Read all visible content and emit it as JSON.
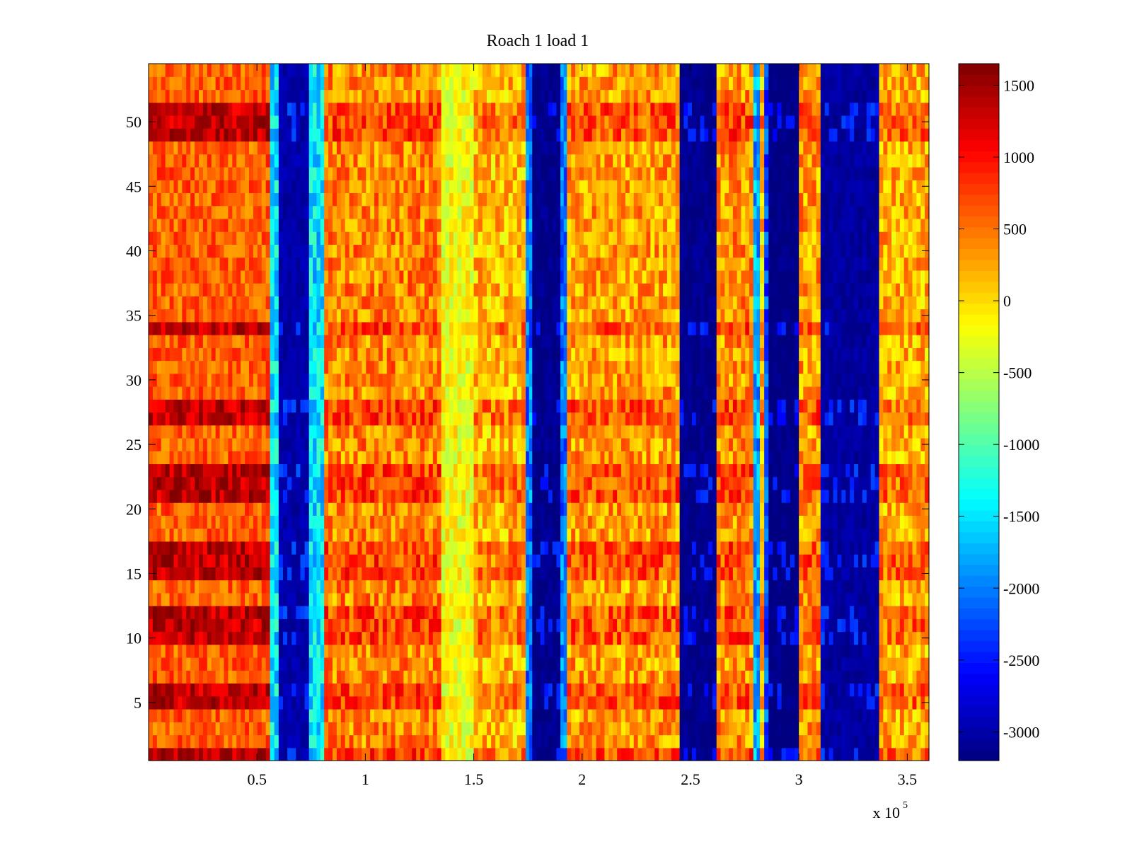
{
  "chart_data": {
    "type": "heatmap",
    "title": "Roach 1 load 1",
    "xlabel": "",
    "ylabel": "",
    "x_exponent_label": "x 10",
    "x_exponent_power": "5",
    "xlim": [
      0,
      3.6
    ],
    "ylim": [
      0.5,
      54.5
    ],
    "x_ticks": [
      0.5,
      1,
      1.5,
      2,
      2.5,
      3,
      3.5
    ],
    "x_tick_labels": [
      "0.5",
      "1",
      "1.5",
      "2",
      "2.5",
      "3",
      "3.5"
    ],
    "y_ticks": [
      5,
      10,
      15,
      20,
      25,
      30,
      35,
      40,
      45,
      50
    ],
    "y_tick_labels": [
      "5",
      "10",
      "15",
      "20",
      "25",
      "30",
      "35",
      "40",
      "45",
      "50"
    ],
    "rows": 54,
    "colormap": "jet",
    "clim": [
      -3200,
      1650
    ],
    "colorbar_ticks": [
      1500,
      1000,
      500,
      0,
      -500,
      -1000,
      -1500,
      -2000,
      -2500,
      -3000
    ],
    "colorbar_tick_labels": [
      "1500",
      "1000",
      "500",
      "0",
      "-500",
      "-1000",
      "-1500",
      "-2000",
      "-2500",
      "-3000"
    ],
    "column_profile": [
      {
        "x0": 0.0,
        "x1": 0.56,
        "kind": "hot",
        "base": 600
      },
      {
        "x0": 0.56,
        "x1": 0.6,
        "kind": "edge",
        "base": -1500
      },
      {
        "x0": 0.6,
        "x1": 0.74,
        "kind": "cold",
        "base": -3000
      },
      {
        "x0": 0.74,
        "x1": 0.81,
        "kind": "edge",
        "base": -1500
      },
      {
        "x0": 0.81,
        "x1": 1.35,
        "kind": "warm",
        "base": 400
      },
      {
        "x0": 1.35,
        "x1": 1.5,
        "kind": "mild",
        "base": -200
      },
      {
        "x0": 1.5,
        "x1": 1.74,
        "kind": "warm",
        "base": 150
      },
      {
        "x0": 1.74,
        "x1": 1.77,
        "kind": "edge",
        "base": -2000
      },
      {
        "x0": 1.77,
        "x1": 1.9,
        "kind": "cold",
        "base": -3150
      },
      {
        "x0": 1.9,
        "x1": 1.93,
        "kind": "edge",
        "base": -2000
      },
      {
        "x0": 1.93,
        "x1": 2.45,
        "kind": "warm",
        "base": 300
      },
      {
        "x0": 2.45,
        "x1": 2.62,
        "kind": "cold",
        "base": -3150
      },
      {
        "x0": 2.62,
        "x1": 2.79,
        "kind": "warm",
        "base": 350
      },
      {
        "x0": 2.79,
        "x1": 2.82,
        "kind": "edge",
        "base": -1800
      },
      {
        "x0": 2.82,
        "x1": 2.84,
        "kind": "warm",
        "base": 100
      },
      {
        "x0": 2.84,
        "x1": 2.86,
        "kind": "edge",
        "base": -2200
      },
      {
        "x0": 2.86,
        "x1": 3.0,
        "kind": "cold",
        "base": -3200
      },
      {
        "x0": 3.0,
        "x1": 3.1,
        "kind": "warm",
        "base": 300
      },
      {
        "x0": 3.1,
        "x1": 3.37,
        "kind": "cold",
        "base": -3050
      },
      {
        "x0": 3.37,
        "x1": 3.6,
        "kind": "warm",
        "base": 200
      }
    ],
    "hot_rows": [
      1,
      5,
      6,
      10,
      11,
      12,
      15,
      16,
      17,
      21,
      22,
      23,
      27,
      28,
      34,
      49,
      50,
      51
    ]
  }
}
